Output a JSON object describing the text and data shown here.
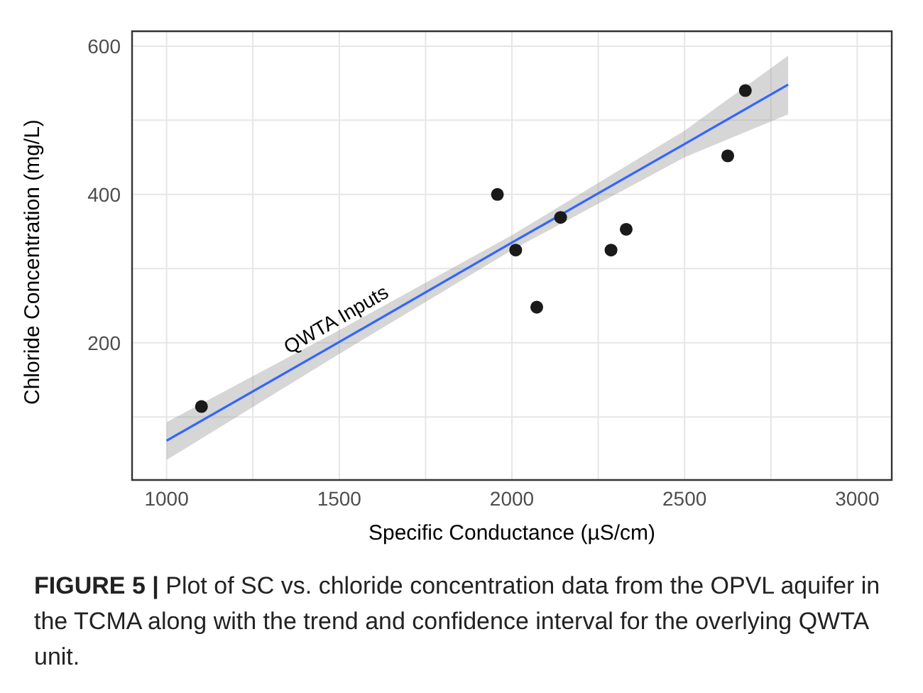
{
  "chart_data": {
    "type": "scatter",
    "xlabel": "Specific Conductance (µS/cm)",
    "ylabel": "Chloride Concentration (mg/L)",
    "xlim": [
      900,
      3100
    ],
    "ylim": [
      15,
      620
    ],
    "xticks": [
      1000,
      {
        "value": 1250,
        "label": null
      },
      1500,
      {
        "value": 1750,
        "label": null
      },
      2000,
      {
        "value": 2250,
        "label": null
      },
      2500,
      {
        "value": 2750,
        "label": null
      },
      3000
    ],
    "yticks": [
      {
        "value": 100,
        "label": null
      },
      200,
      {
        "value": 300,
        "label": null
      },
      400,
      {
        "value": 500,
        "label": null
      },
      600
    ],
    "grid": true,
    "series": [
      {
        "marker": "circle",
        "color": "#1a1a1a",
        "x": [
          1101,
          1958,
          2011,
          2072,
          2141,
          2287,
          2331,
          2625,
          2676
        ],
        "values": [
          114,
          400,
          325,
          248,
          369,
          325,
          353,
          452,
          540
        ]
      },
      {
        "type": "line",
        "color": "#3366ff",
        "x": [
          1000,
          1500,
          2000,
          2500,
          2800
        ],
        "values": [
          68,
          201,
          335,
          468,
          548
        ],
        "lower": [
          42,
          185,
          325,
          450,
          508
        ],
        "upper": [
          93,
          217,
          345,
          486,
          587
        ]
      }
    ],
    "annotations": [
      {
        "text": "QWTA Inputs",
        "x": 1521,
        "y": 207
      },
      "FIGURE 5 | Plot of SC vs. chloride concentration data from the OPVL aquifer in the TCMA along with the trend and confidence interval for the overlying QWTA unit."
    ]
  }
}
